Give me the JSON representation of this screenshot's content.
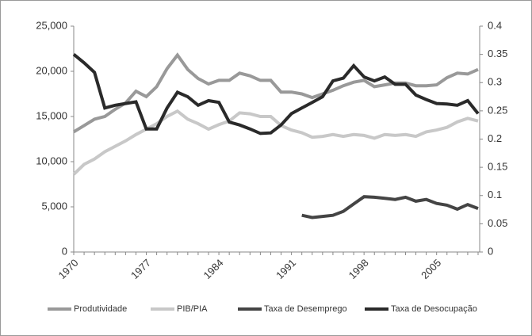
{
  "chart_data": {
    "type": "line",
    "categories": [
      "1970",
      null,
      null,
      null,
      null,
      null,
      null,
      "1977",
      null,
      null,
      null,
      null,
      null,
      null,
      "1984",
      null,
      null,
      null,
      null,
      null,
      null,
      "1991",
      null,
      null,
      null,
      null,
      null,
      null,
      "1998",
      null,
      null,
      null,
      null,
      null,
      null,
      "2005",
      null,
      null,
      null,
      null
    ],
    "ylim": [
      0,
      25000
    ],
    "yticks": [
      {
        "value": 0,
        "label": "0"
      },
      {
        "value": 5000,
        "label": "5,000"
      },
      {
        "value": 10000,
        "label": "10,000"
      },
      {
        "value": 15000,
        "label": "15,000"
      },
      {
        "value": 20000,
        "label": "20,000"
      },
      {
        "value": 25000,
        "label": "25,000"
      }
    ],
    "y2lim": [
      0,
      0.4
    ],
    "y2ticks": [
      0,
      0.05,
      0.1,
      0.15,
      0.2,
      0.25,
      0.3,
      0.35,
      0.4
    ],
    "legend": "bottom",
    "series": [
      {
        "name": "Produtividade",
        "color": "#999999",
        "values": [
          13300,
          14000,
          14700,
          15000,
          15800,
          16500,
          17800,
          17200,
          18300,
          20300,
          21800,
          20200,
          19200,
          18600,
          19000,
          19000,
          19800,
          19500,
          19000,
          19000,
          17700,
          17700,
          17500,
          17100,
          17500,
          17900,
          18400,
          18800,
          19000,
          18300,
          18500,
          18700,
          18700,
          18400,
          18400,
          18500,
          19300,
          19800,
          19700,
          20200
        ]
      },
      {
        "name": "PIB/PIA",
        "color": "#c8c8c8",
        "values": [
          8600,
          9700,
          10300,
          11100,
          11700,
          12300,
          13000,
          13600,
          14200,
          15000,
          15600,
          14700,
          14200,
          13600,
          14100,
          14500,
          15400,
          15300,
          15000,
          15000,
          14000,
          13500,
          13200,
          12700,
          12800,
          13000,
          12800,
          13000,
          12900,
          12600,
          13000,
          12900,
          13000,
          12800,
          13300,
          13500,
          13800,
          14400,
          14800,
          14500
        ]
      },
      {
        "name": "Taxa de Desemprego",
        "color": "#444444",
        "axis": "y2",
        "values": [
          null,
          null,
          null,
          null,
          null,
          null,
          null,
          null,
          null,
          null,
          null,
          null,
          null,
          null,
          null,
          null,
          null,
          null,
          null,
          null,
          null,
          null,
          0.065,
          0.061,
          0.063,
          0.065,
          0.072,
          0.085,
          0.098,
          0.097,
          0.095,
          0.093,
          0.097,
          0.09,
          0.093,
          0.086,
          0.083,
          0.076,
          0.084,
          0.077
        ]
      },
      {
        "name": "Taxa de Desocupação",
        "color": "#2a2a2a",
        "axis": "y2",
        "values": [
          0.35,
          0.335,
          0.318,
          0.255,
          0.26,
          0.263,
          0.266,
          0.218,
          0.218,
          0.255,
          0.283,
          0.275,
          0.26,
          0.268,
          0.265,
          0.23,
          0.225,
          0.218,
          0.21,
          0.211,
          0.225,
          0.245,
          0.255,
          0.265,
          0.275,
          0.303,
          0.308,
          0.33,
          0.31,
          0.303,
          0.31,
          0.297,
          0.297,
          0.278,
          0.27,
          0.263,
          0.262,
          0.26,
          0.268,
          0.245
        ]
      }
    ]
  }
}
